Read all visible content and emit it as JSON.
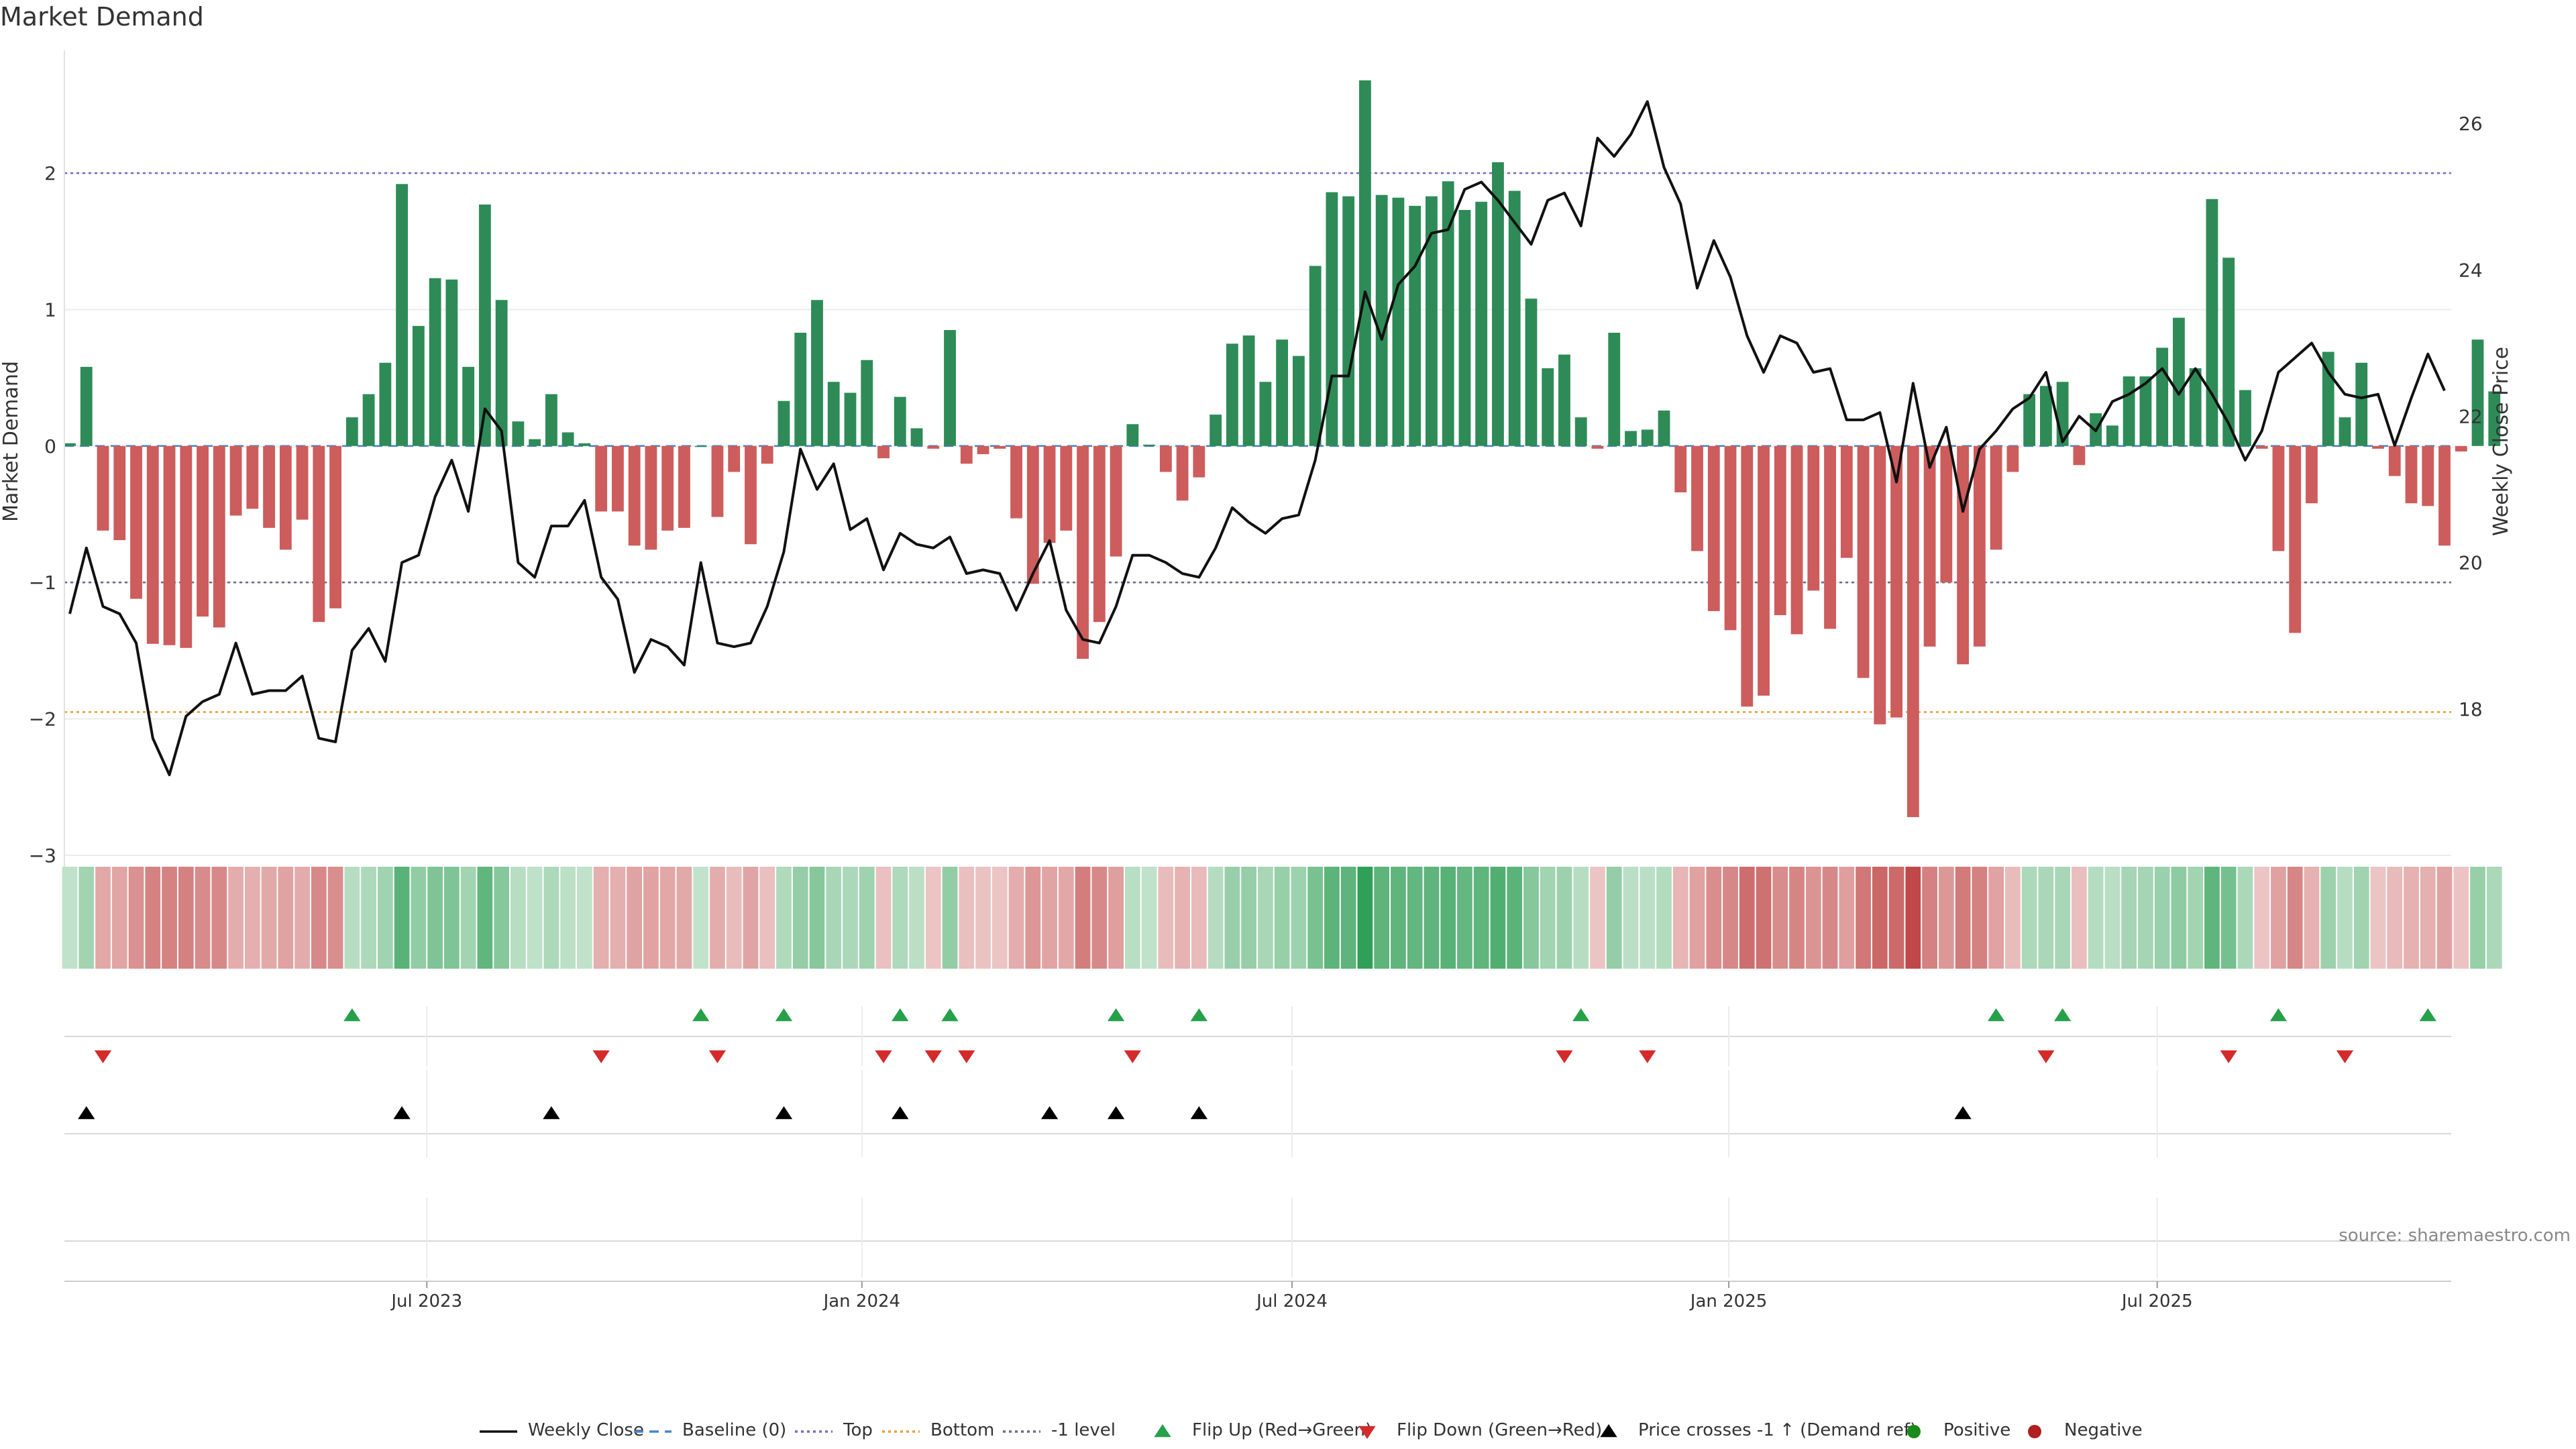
{
  "chart_data": {
    "type": "bar",
    "title": "Market Demand",
    "ylabel": "Market Demand",
    "y2label": "Weekly Close Price",
    "source": "source: sharemaestro.com",
    "ylim": [
      -3.0,
      2.9
    ],
    "y2lim": [
      16.0,
      27.0
    ],
    "yticks": [
      2,
      1,
      0,
      -1,
      -2,
      -3
    ],
    "ytick_labels": [
      "2",
      "1",
      "0",
      "−1",
      "−2",
      "−3"
    ],
    "y2ticks": [
      26,
      24,
      22,
      20,
      18
    ],
    "y2tick_labels": [
      "26",
      "24",
      "22",
      "20",
      "18"
    ],
    "x_start_week": 0,
    "x_end_week": 143,
    "xticks": [
      {
        "label": "Jul 2023",
        "week": 21.5
      },
      {
        "label": "Jan 2024",
        "week": 47.7
      },
      {
        "label": "Jul 2024",
        "week": 73.6
      },
      {
        "label": "Jan 2025",
        "week": 99.9
      },
      {
        "label": "Jul 2025",
        "week": 125.7
      }
    ],
    "reference_lines": [
      {
        "name": "Top",
        "value": 2.0,
        "color": "#7b68c8",
        "dash": "dotted"
      },
      {
        "name": "Bottom",
        "value": -1.95,
        "color": "#e6a040",
        "dash": "dotted"
      },
      {
        "name": "-1 level",
        "value": -1.0,
        "color": "#6a6a8a",
        "dash": "dotted"
      },
      {
        "name": "Baseline (0)",
        "value": 0.0,
        "color": "#4a86c8",
        "dash": "dashed"
      }
    ],
    "demand": [
      0.02,
      0.58,
      -0.62,
      -0.69,
      -1.12,
      -1.45,
      -1.46,
      -1.48,
      -1.25,
      -1.33,
      -0.51,
      -0.46,
      -0.6,
      -0.76,
      -0.54,
      -1.29,
      -1.19,
      0.21,
      0.38,
      0.61,
      1.92,
      0.88,
      1.23,
      1.22,
      0.58,
      1.77,
      1.07,
      0.18,
      0.05,
      0.38,
      0.1,
      0.02,
      -0.48,
      -0.48,
      -0.73,
      -0.76,
      -0.62,
      -0.6,
      0.0,
      -0.52,
      -0.19,
      -0.72,
      -0.13,
      0.33,
      0.83,
      1.07,
      0.47,
      0.39,
      0.63,
      -0.09,
      0.36,
      0.13,
      -0.02,
      0.85,
      -0.13,
      -0.06,
      -0.02,
      -0.53,
      -1.01,
      -0.71,
      -0.62,
      -1.56,
      -1.29,
      -0.81,
      0.16,
      0.01,
      -0.19,
      -0.4,
      -0.23,
      0.23,
      0.75,
      0.81,
      0.47,
      0.78,
      0.66,
      1.32,
      1.86,
      1.83,
      2.68,
      1.84,
      1.82,
      1.76,
      1.83,
      1.94,
      1.73,
      1.79,
      2.08,
      1.87,
      1.08,
      0.57,
      0.67,
      0.21,
      -0.02,
      0.83,
      0.11,
      0.12,
      0.26,
      -0.34,
      -0.77,
      -1.21,
      -1.35,
      -1.91,
      -1.83,
      -1.24,
      -1.38,
      -1.06,
      -1.34,
      -0.82,
      -1.7,
      -2.04,
      -1.99,
      -2.72,
      -1.47,
      -1.0,
      -1.6,
      -1.47,
      -0.76,
      -0.19,
      0.38,
      0.44,
      0.47,
      -0.14,
      0.24,
      0.15,
      0.51,
      0.51,
      0.72,
      0.94,
      0.57,
      1.81,
      1.38,
      0.41,
      -0.02,
      -0.77,
      -1.37,
      -0.42,
      0.69,
      0.21,
      0.61,
      -0.02,
      -0.22,
      -0.42,
      -0.44,
      -0.73,
      -0.04,
      0.78,
      0.4
    ],
    "weekly_close": [
      19.3,
      20.2,
      19.4,
      19.3,
      18.9,
      17.6,
      17.1,
      17.9,
      18.1,
      18.2,
      18.9,
      18.2,
      18.25,
      18.25,
      18.45,
      17.6,
      17.55,
      18.8,
      19.1,
      18.65,
      20.0,
      20.1,
      20.9,
      21.4,
      20.7,
      22.1,
      21.8,
      20.0,
      19.8,
      20.5,
      20.5,
      20.85,
      19.8,
      19.5,
      18.5,
      18.95,
      18.85,
      18.6,
      20.0,
      18.9,
      18.85,
      18.9,
      19.4,
      20.15,
      21.55,
      21.0,
      21.35,
      20.45,
      20.6,
      19.9,
      20.4,
      20.25,
      20.2,
      20.35,
      19.85,
      19.9,
      19.85,
      19.35,
      19.85,
      20.3,
      19.35,
      18.95,
      18.9,
      19.4,
      20.1,
      20.1,
      20.0,
      19.85,
      19.8,
      20.2,
      20.75,
      20.55,
      20.4,
      20.6,
      20.65,
      21.4,
      22.55,
      22.55,
      23.7,
      23.05,
      23.8,
      24.05,
      24.5,
      24.55,
      25.1,
      25.2,
      24.95,
      24.65,
      24.35,
      24.95,
      25.05,
      24.6,
      25.8,
      25.55,
      25.85,
      26.3,
      25.4,
      24.9,
      23.75,
      24.4,
      23.9,
      23.1,
      22.6,
      23.1,
      23.0,
      22.6,
      22.65,
      21.95,
      21.95,
      22.05,
      21.1,
      22.45,
      21.3,
      21.85,
      20.7,
      21.55,
      21.8,
      22.1,
      22.25,
      22.6,
      21.65,
      22.0,
      21.8,
      22.2,
      22.3,
      22.45,
      22.65,
      22.3,
      22.65,
      22.3,
      21.9,
      21.4,
      21.8,
      22.6,
      22.8,
      23.0,
      22.6,
      22.3,
      22.25,
      22.3,
      21.6,
      22.25,
      22.85,
      22.35
    ],
    "flip_up_weeks": [
      17,
      38,
      43,
      50,
      53,
      63,
      68,
      91,
      116,
      120,
      133,
      142
    ],
    "flip_down_weeks": [
      2,
      32,
      39,
      49,
      52,
      54,
      64,
      90,
      95,
      119,
      130,
      137
    ],
    "price_cross_weeks": [
      1,
      20,
      29,
      43,
      50,
      59,
      63,
      68,
      114
    ],
    "colors": {
      "positive": "#2e8b57",
      "negative": "#cd5c5c",
      "price_line": "#111111",
      "flip_up": "#27a04a",
      "flip_down": "#d42a2a",
      "cross": "#000000",
      "legend_positive": "#1a8a1a",
      "legend_negative": "#b02020"
    },
    "legend": [
      {
        "label": "Weekly Close",
        "kind": "line",
        "color": "#111111",
        "dash": "solid"
      },
      {
        "label": "Baseline (0)",
        "kind": "line",
        "color": "#4a86c8",
        "dash": "dashed"
      },
      {
        "label": "Top",
        "kind": "line",
        "color": "#7b68c8",
        "dash": "dotted"
      },
      {
        "label": "Bottom",
        "kind": "line",
        "color": "#e6a040",
        "dash": "dotted"
      },
      {
        "label": "-1 level",
        "kind": "line",
        "color": "#6a6a8a",
        "dash": "dotted"
      },
      {
        "label": "Flip Up (Red→Green)",
        "kind": "tri-up",
        "color": "#27a04a"
      },
      {
        "label": "Flip Down (Green→Red)",
        "kind": "tri-down",
        "color": "#d42a2a"
      },
      {
        "label": "Price crosses -1 ↑ (Demand ref)",
        "kind": "tri-up",
        "color": "#000000"
      },
      {
        "label": "Positive",
        "kind": "dot",
        "color": "#1a8a1a"
      },
      {
        "label": "Negative",
        "kind": "dot",
        "color": "#b02020"
      }
    ]
  }
}
